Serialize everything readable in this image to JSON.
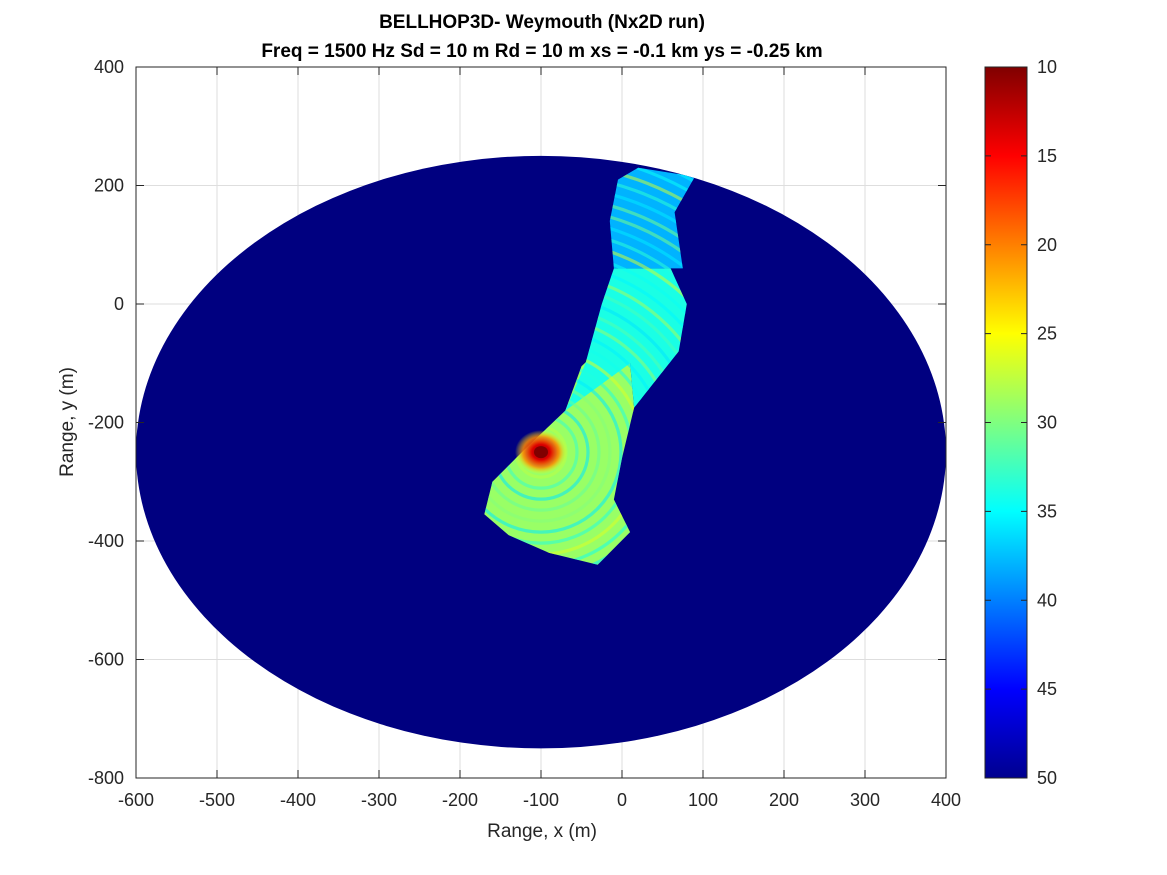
{
  "chart_data": {
    "type": "heatmap",
    "title_line1": "BELLHOP3D- Weymouth (Nx2D run)",
    "title_line2": "Freq = 1500 Hz    Sd = 10 m   Rd = 10 m   xs = -0.1 km   ys = -0.25 km",
    "xlabel": "Range, x (m)",
    "ylabel": "Range, y (m)",
    "xlim": [
      -600,
      400
    ],
    "ylim": [
      -800,
      400
    ],
    "xticks": [
      -600,
      -500,
      -400,
      -300,
      -200,
      -100,
      0,
      100,
      200,
      300,
      400
    ],
    "yticks": [
      -800,
      -600,
      -400,
      -200,
      0,
      200,
      400
    ],
    "grid": true,
    "colormap": "jet",
    "colorbar": {
      "location": "right",
      "range": [
        10,
        50
      ],
      "reversed": true,
      "ticks": [
        10,
        15,
        20,
        25,
        30,
        35,
        40,
        45,
        50
      ]
    },
    "background_level": 50,
    "domain_ellipse": {
      "center_x": -100,
      "center_y": -250,
      "radius_x": 500,
      "radius_y": 500
    },
    "source": {
      "x": -100,
      "y": -250,
      "level": 10
    },
    "field_regions": [
      {
        "name": "near-source fan",
        "level": 29,
        "polygon": [
          [
            -170,
            -355
          ],
          [
            -160,
            -300
          ],
          [
            -120,
            -245
          ],
          [
            -70,
            -180
          ],
          [
            -50,
            -105
          ],
          [
            -15,
            -60
          ],
          [
            10,
            -100
          ],
          [
            15,
            -175
          ],
          [
            0,
            -260
          ],
          [
            -10,
            -330
          ],
          [
            10,
            -385
          ],
          [
            -30,
            -440
          ],
          [
            -90,
            -420
          ],
          [
            -140,
            -390
          ]
        ]
      },
      {
        "name": "mid strip",
        "level": 34,
        "polygon": [
          [
            -70,
            -180
          ],
          [
            -45,
            -100
          ],
          [
            -25,
            0
          ],
          [
            -10,
            60
          ],
          [
            60,
            60
          ],
          [
            80,
            0
          ],
          [
            70,
            -80
          ],
          [
            15,
            -175
          ],
          [
            10,
            -100
          ]
        ]
      },
      {
        "name": "far strip",
        "level": 38,
        "polygon": [
          [
            -10,
            60
          ],
          [
            -15,
            140
          ],
          [
            -5,
            210
          ],
          [
            20,
            230
          ],
          [
            90,
            215
          ],
          [
            65,
            155
          ],
          [
            75,
            60
          ],
          [
            60,
            60
          ]
        ]
      }
    ]
  },
  "figure": {
    "background": "#ffffff"
  }
}
